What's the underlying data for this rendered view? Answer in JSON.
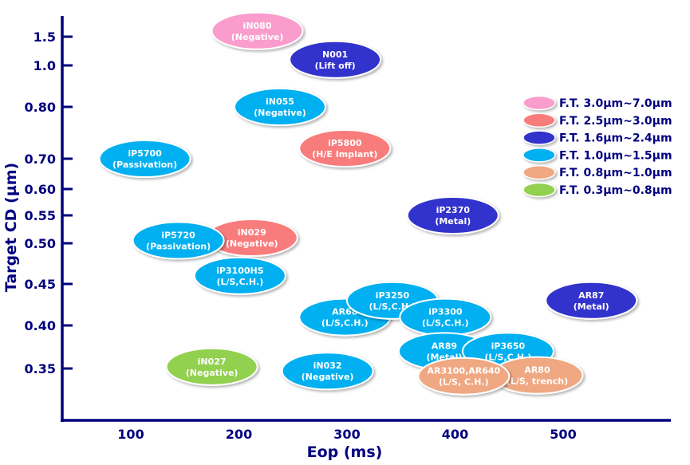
{
  "chart_data": {
    "type": "scatter",
    "title": "",
    "xlabel": "Eop (ms)",
    "ylabel": "Target CD (µm)",
    "xlim": [
      0,
      590
    ],
    "x_ticks": [
      100,
      200,
      300,
      400,
      500
    ],
    "y_ticks": [
      1.5,
      1.0,
      0.8,
      0.7,
      0.6,
      0.55,
      0.5,
      0.45,
      0.4,
      0.35
    ],
    "y_tick_labels": [
      "1.5",
      "1.0",
      "0.80",
      "0.70",
      "0.60",
      "0.55",
      "0.50",
      "0.45",
      "0.40",
      "0.35"
    ],
    "grid": false,
    "legend_position": "right",
    "legend": [
      {
        "label": "F.T. 3.0µm~7.0µm",
        "color": "#fa9dcd"
      },
      {
        "label": "F.T. 2.5µm~3.0µm",
        "color": "#f97c7c"
      },
      {
        "label": "F.T. 1.6µm~2.4µm",
        "color": "#3333cc"
      },
      {
        "label": "F.T. 1.0µm~1.5µm",
        "color": "#00b0f0"
      },
      {
        "label": "F.T. 0.8µm~1.0µm",
        "color": "#f0a882"
      },
      {
        "label": "F.T. 0.3µm~0.8µm",
        "color": "#92d050"
      }
    ],
    "points": [
      {
        "name": "iN080",
        "app": "(Negative)",
        "x": 217,
        "y": 1.6,
        "group": 0
      },
      {
        "name": "N001",
        "app": "(Lift off)",
        "x": 289,
        "y": 1.1,
        "group": 2
      },
      {
        "name": "iN055",
        "app": "(Negative)",
        "x": 238,
        "y": 0.8,
        "group": 3
      },
      {
        "name": "iP5800",
        "app": "(H/E Implant)",
        "x": 298,
        "y": 0.72,
        "group": 1
      },
      {
        "name": "iP5700",
        "app": "(Passivation)",
        "x": 113,
        "y": 0.7,
        "group": 3
      },
      {
        "name": "iP2370",
        "app": "(Metal)",
        "x": 398,
        "y": 0.55,
        "group": 2
      },
      {
        "name": "iN029",
        "app": "(Negative)",
        "x": 212,
        "y": 0.51,
        "group": 1
      },
      {
        "name": "iP5720",
        "app": "(Passivation)",
        "x": 144,
        "y": 0.505,
        "group": 3
      },
      {
        "name": "iP3100HS",
        "app": "(L/S,C.H.)",
        "x": 201,
        "y": 0.46,
        "group": 3
      },
      {
        "name": "AR87",
        "app": "(Metal)",
        "x": 526,
        "y": 0.43,
        "group": 2
      },
      {
        "name": "AR68",
        "app": "(L/S,C.H.)",
        "x": 298,
        "y": 0.41,
        "group": 3
      },
      {
        "name": "iP3250",
        "app": "(L/S,C.H.)",
        "x": 342,
        "y": 0.43,
        "group": 3
      },
      {
        "name": "iP3300",
        "app": "(L/S,C.H.)",
        "x": 391,
        "y": 0.41,
        "group": 3
      },
      {
        "name": "AR89",
        "app": "(Metal)",
        "x": 390,
        "y": 0.37,
        "group": 3
      },
      {
        "name": "iP3650",
        "app": "(L/S,C.H.)",
        "x": 449,
        "y": 0.37,
        "group": 3
      },
      {
        "name": "iN027",
        "app": "(Negative)",
        "x": 175,
        "y": 0.352,
        "group": 5
      },
      {
        "name": "iN032",
        "app": "(Negative)",
        "x": 282,
        "y": 0.347,
        "group": 3
      },
      {
        "name": "AR80",
        "app": "(L/S, trench)",
        "x": 476,
        "y": 0.342,
        "group": 4
      },
      {
        "name": "AR3100,AR640",
        "app": "(L/S, C.H.)",
        "x": 408,
        "y": 0.341,
        "group": 4
      }
    ]
  }
}
